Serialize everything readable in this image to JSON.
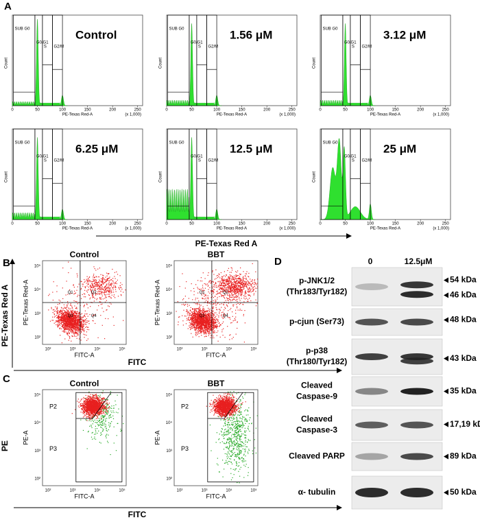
{
  "panel_a": {
    "label": "A",
    "axis_title": "PE-Texas Red A",
    "plots": [
      {
        "title": "Control"
      },
      {
        "title": "1.56 μM"
      },
      {
        "title": "3.12 μM"
      },
      {
        "title": "6.25 μM"
      },
      {
        "title": "12.5 μM"
      },
      {
        "title": "25 μM"
      }
    ],
    "gates": [
      "SUB G0",
      "G0/G1",
      "S",
      "G2/M"
    ],
    "y_label": "Count",
    "x_label": "PE-Texas Red-A",
    "x_scale": "(x 1,000)",
    "xticks": [
      "0",
      "50",
      "100",
      "150",
      "200",
      "250"
    ]
  },
  "panel_b": {
    "label": "B",
    "y_axis_title": "PE-Texas Red A",
    "x_axis_title": "FITC",
    "plots": [
      {
        "title": "Control"
      },
      {
        "title": "BBT"
      }
    ],
    "quadrants": [
      "Q1",
      "Q2",
      "Q3",
      "Q4"
    ],
    "y_label": "PE-Texas Red-A",
    "x_label": "FITC-A",
    "ticks": [
      "10²",
      "10³",
      "10⁴",
      "10⁵"
    ]
  },
  "panel_c": {
    "label": "C",
    "y_axis_title": "PE",
    "x_axis_title": "FITC",
    "plots": [
      {
        "title": "Control"
      },
      {
        "title": "BBT"
      }
    ],
    "gates": [
      "P2",
      "P3"
    ],
    "y_label": "PE-A",
    "x_label": "FITC-A",
    "ticks": [
      "10²",
      "10³",
      "10⁴",
      "10⁵"
    ]
  },
  "panel_d": {
    "label": "D",
    "lanes": [
      "0",
      "12.5μM"
    ],
    "rows": [
      {
        "protein": [
          "p-JNK1/2",
          "(Thr183/Tyr182)"
        ],
        "sizes": [
          "54 kDa",
          "46 kDa"
        ]
      },
      {
        "protein": [
          "p-cjun (Ser73)"
        ],
        "sizes": [
          "48 kDa"
        ]
      },
      {
        "protein": [
          "p-p38",
          "(Thr180/Tyr182)"
        ],
        "sizes": [
          "43 kDa"
        ]
      },
      {
        "protein": [
          "Cleaved",
          "Caspase-9"
        ],
        "sizes": [
          "35 kDa"
        ]
      },
      {
        "protein": [
          "Cleaved",
          "Caspase-3"
        ],
        "sizes": [
          "17,19 kDa"
        ]
      },
      {
        "protein": [
          "Cleaved PARP"
        ],
        "sizes": [
          "89 kDa"
        ]
      },
      {
        "protein": [
          "α- tubulin"
        ],
        "sizes": [
          "50 kDa"
        ]
      }
    ]
  }
}
